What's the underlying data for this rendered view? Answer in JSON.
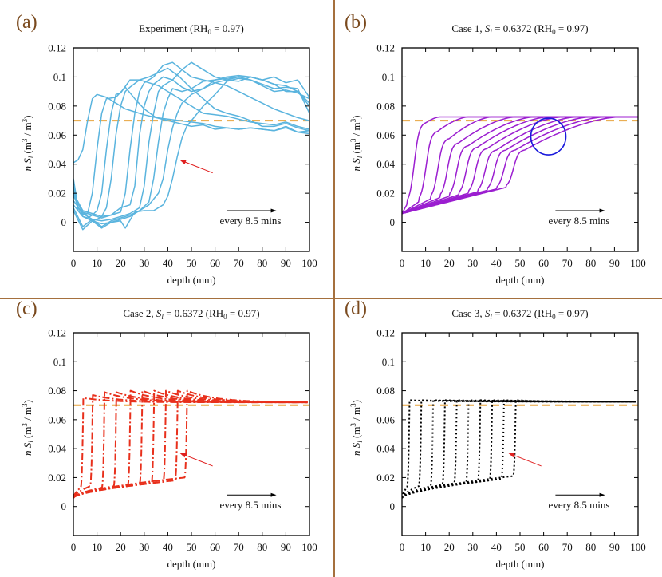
{
  "colors": {
    "divider": "#a5703e",
    "panel_label": "#7a4a1e",
    "reference_line": "#e8a33c",
    "annotation_arrow": "#e02020",
    "highlight_circle": "#1a1adc"
  },
  "chart_data": [
    {
      "panel": "(a)",
      "type": "line",
      "title": "Experiment (RH₀ = 0.97)",
      "title_parts": {
        "pre": "Experiment (RH",
        "sub": "0",
        "post": " = 0.97)"
      },
      "xlabel": "depth (mm)",
      "ylabel": "n S_l (m^3 / m^3)",
      "xlim": [
        0,
        100
      ],
      "ylim": [
        -0.02,
        0.12
      ],
      "xticks": [
        0,
        10,
        20,
        30,
        40,
        50,
        60,
        70,
        80,
        90,
        100
      ],
      "yticks": [
        "0",
        "0.02",
        "0.04",
        "0.06",
        "0.08",
        "0.1",
        "0.12"
      ],
      "ytick_values": [
        0,
        0.02,
        0.04,
        0.06,
        0.08,
        0.1,
        0.12
      ],
      "line_color": "#5ab4de",
      "line_style": "solid",
      "reference_line": {
        "y": 0.07,
        "style": "dashed"
      },
      "annotation": {
        "text": "every 8.5 mins",
        "arrow": "right"
      },
      "series": [
        {
          "name": "t1",
          "x": [
            0,
            2,
            4,
            6,
            8,
            10,
            14,
            18,
            22,
            26,
            30,
            35,
            40,
            45,
            50,
            55,
            60,
            65,
            70,
            75,
            80,
            85,
            90,
            95,
            100
          ],
          "y": [
            0.041,
            0.043,
            0.05,
            0.07,
            0.085,
            0.088,
            0.086,
            0.082,
            0.078,
            0.076,
            0.074,
            0.072,
            0.071,
            0.07,
            0.069,
            0.068,
            0.066,
            0.065,
            0.064,
            0.065,
            0.064,
            0.063,
            0.065,
            0.062,
            0.061
          ]
        },
        {
          "name": "t2",
          "x": [
            0,
            2,
            4,
            6,
            8,
            10,
            12,
            14,
            18,
            22,
            26,
            30,
            35,
            40,
            45,
            50,
            55,
            60,
            65,
            70,
            75,
            80,
            85,
            90,
            95,
            100
          ],
          "y": [
            0.03,
            0.01,
            0.005,
            0.006,
            0.02,
            0.05,
            0.075,
            0.085,
            0.086,
            0.093,
            0.085,
            0.078,
            0.072,
            0.07,
            0.068,
            0.066,
            0.067,
            0.064,
            0.065,
            0.064,
            0.065,
            0.064,
            0.063,
            0.066,
            0.062,
            0.063
          ]
        },
        {
          "name": "t3",
          "x": [
            0,
            2,
            4,
            6,
            8,
            10,
            12,
            14,
            16,
            18,
            20,
            24,
            28,
            32,
            36,
            40,
            45,
            50,
            55,
            60,
            65,
            70,
            75,
            80,
            85,
            90,
            95,
            100
          ],
          "y": [
            0.025,
            0.008,
            0.004,
            0.003,
            0.005,
            0.008,
            0.02,
            0.05,
            0.075,
            0.088,
            0.089,
            0.098,
            0.098,
            0.096,
            0.094,
            0.09,
            0.085,
            0.08,
            0.075,
            0.074,
            0.073,
            0.071,
            0.069,
            0.068,
            0.067,
            0.069,
            0.066,
            0.064
          ]
        },
        {
          "name": "t4",
          "x": [
            0,
            2,
            4,
            6,
            8,
            10,
            12,
            14,
            16,
            18,
            20,
            22,
            24,
            28,
            32,
            36,
            40,
            45,
            50,
            55,
            60,
            65,
            70,
            75,
            80,
            85,
            90,
            95,
            100
          ],
          "y": [
            0.02,
            0.01,
            0.007,
            0.004,
            0.002,
            0.002,
            0.004,
            0.01,
            0.03,
            0.06,
            0.08,
            0.09,
            0.093,
            0.098,
            0.1,
            0.103,
            0.106,
            0.1,
            0.092,
            0.085,
            0.078,
            0.075,
            0.073,
            0.07,
            0.066,
            0.066,
            0.068,
            0.065,
            0.063
          ]
        },
        {
          "name": "t5",
          "x": [
            0,
            4,
            8,
            12,
            16,
            20,
            22,
            24,
            26,
            28,
            30,
            34,
            38,
            42,
            46,
            50,
            55,
            60,
            65,
            70,
            75,
            80,
            85,
            90,
            95,
            100
          ],
          "y": [
            0.02,
            0.008,
            0.006,
            0.004,
            0.005,
            0.007,
            0.02,
            0.05,
            0.075,
            0.09,
            0.096,
            0.1,
            0.108,
            0.11,
            0.105,
            0.1,
            0.098,
            0.096,
            0.094,
            0.09,
            0.086,
            0.082,
            0.078,
            0.075,
            0.072,
            0.07
          ]
        },
        {
          "name": "t6",
          "x": [
            0,
            4,
            8,
            12,
            16,
            20,
            24,
            26,
            28,
            30,
            32,
            34,
            38,
            42,
            46,
            50,
            55,
            60,
            65,
            70,
            75,
            80,
            85,
            90,
            95,
            100
          ],
          "y": [
            0.018,
            0.007,
            0.005,
            0.003,
            0.005,
            0.01,
            0.012,
            0.025,
            0.06,
            0.08,
            0.09,
            0.095,
            0.1,
            0.098,
            0.105,
            0.11,
            0.105,
            0.1,
            0.098,
            0.1,
            0.098,
            0.094,
            0.09,
            0.091,
            0.089,
            0.085
          ]
        },
        {
          "name": "t7",
          "x": [
            0,
            4,
            8,
            12,
            16,
            20,
            24,
            28,
            30,
            32,
            34,
            36,
            38,
            42,
            46,
            50,
            55,
            60,
            65,
            70,
            75,
            80,
            85,
            90,
            95,
            100
          ],
          "y": [
            0.015,
            0.006,
            0.002,
            0.001,
            0.002,
            0.004,
            0.006,
            0.01,
            0.025,
            0.055,
            0.075,
            0.09,
            0.094,
            0.098,
            0.093,
            0.09,
            0.092,
            0.098,
            0.099,
            0.1,
            0.1,
            0.098,
            0.1,
            0.096,
            0.098,
            0.086
          ]
        },
        {
          "name": "t8",
          "x": [
            0,
            4,
            8,
            12,
            16,
            20,
            24,
            28,
            32,
            34,
            36,
            38,
            40,
            42,
            46,
            50,
            55,
            60,
            65,
            70,
            75,
            80,
            85,
            90,
            95,
            100
          ],
          "y": [
            0.012,
            0.004,
            0.001,
            -0.001,
            0,
            0.002,
            0.004,
            0.008,
            0.014,
            0.03,
            0.055,
            0.075,
            0.085,
            0.092,
            0.09,
            0.092,
            0.097,
            0.098,
            0.1,
            0.101,
            0.1,
            0.098,
            0.095,
            0.094,
            0.09,
            0.08
          ]
        },
        {
          "name": "t9",
          "x": [
            0,
            4,
            8,
            12,
            16,
            20,
            24,
            28,
            32,
            36,
            38,
            40,
            42,
            44,
            46,
            50,
            55,
            60,
            65,
            70,
            75,
            80,
            85,
            90,
            95,
            100
          ],
          "y": [
            0.01,
            -0.003,
            0.002,
            -0.003,
            0.001,
            0.003,
            0.005,
            0.008,
            0.012,
            0.02,
            0.03,
            0.05,
            0.065,
            0.075,
            0.082,
            0.088,
            0.092,
            0.096,
            0.098,
            0.097,
            0.1,
            0.098,
            0.095,
            0.09,
            0.09,
            0.082
          ]
        },
        {
          "name": "t10",
          "x": [
            0,
            4,
            8,
            12,
            16,
            20,
            22,
            26,
            30,
            34,
            38,
            40,
            42,
            44,
            46,
            48,
            50,
            55,
            60,
            65,
            70,
            75,
            80,
            85,
            90,
            95,
            100
          ],
          "y": [
            0.008,
            -0.005,
            0.001,
            -0.004,
            0,
            0.001,
            -0.004,
            0.007,
            0.008,
            0.008,
            0.012,
            0.018,
            0.03,
            0.045,
            0.058,
            0.066,
            0.07,
            0.08,
            0.088,
            0.097,
            0.099,
            0.098,
            0.095,
            0.092,
            0.093,
            0.092,
            0.075
          ]
        }
      ]
    },
    {
      "panel": "(b)",
      "type": "line",
      "title": "Case 1, S_l = 0.6372 (RH₀ = 0.97)",
      "title_parts": {
        "pre": "Case 1, ",
        "ital": "S",
        "isub": "l",
        "mid": " = 0.6372 (RH",
        "sub": "0",
        "post": " = 0.97)"
      },
      "xlabel": "depth (mm)",
      "ylabel": "n S_l (m^3 / m^3)",
      "xlim": [
        0,
        100
      ],
      "ylim": [
        -0.02,
        0.12
      ],
      "xticks": [
        0,
        10,
        20,
        30,
        40,
        50,
        60,
        70,
        80,
        90,
        100
      ],
      "yticks": [
        "0",
        "0.02",
        "0.04",
        "0.06",
        "0.08",
        "0.1",
        "0.12"
      ],
      "ytick_values": [
        0,
        0.02,
        0.04,
        0.06,
        0.08,
        0.1,
        0.12
      ],
      "line_color": "#9b1ed0",
      "line_style": "solid",
      "reference_line": {
        "y": 0.07,
        "style": "dashed"
      },
      "highlight": {
        "shape": "circle",
        "x": 62,
        "y": 0.059
      },
      "annotation": {
        "text": "every 8.5 mins",
        "arrow": "right"
      },
      "model": {
        "start_y": 0.006,
        "plateau_y": 0.0725,
        "front_x": [
          2,
          7,
          12,
          16,
          20,
          24,
          28,
          32,
          36,
          40,
          44
        ],
        "front_low_y": [
          0.012,
          0.014,
          0.016,
          0.017,
          0.018,
          0.019,
          0.02,
          0.021,
          0.022,
          0.023,
          0.024
        ],
        "front_high_y": [
          0.069,
          0.063,
          0.058,
          0.055,
          0.053,
          0.052,
          0.051,
          0.05,
          0.05,
          0.05,
          0.05
        ],
        "join_x": [
          16,
          28,
          38,
          48,
          56,
          62,
          68,
          74,
          80,
          86,
          92
        ]
      }
    },
    {
      "panel": "(c)",
      "type": "line",
      "title": "Case 2, S_l = 0.6372 (RH₀ = 0.97)",
      "title_parts": {
        "pre": "Case 2, ",
        "ital": "S",
        "isub": "l",
        "mid": " = 0.6372 (RH",
        "sub": "0",
        "post": " = 0.97)"
      },
      "xlabel": "depth (mm)",
      "ylabel": "n S_l (m^3 / m^3)",
      "xlim": [
        0,
        100
      ],
      "ylim": [
        -0.02,
        0.12
      ],
      "xticks": [
        0,
        10,
        20,
        30,
        40,
        50,
        60,
        70,
        80,
        90,
        100
      ],
      "yticks": [
        "0",
        "0.02",
        "0.04",
        "0.06",
        "0.08",
        "0.1",
        "0.12"
      ],
      "ytick_values": [
        0,
        0.02,
        0.04,
        0.06,
        0.08,
        0.1,
        0.12
      ],
      "line_color": "#e8301c",
      "line_style": "dash-dot",
      "reference_line": {
        "y": 0.07,
        "style": "dashed"
      },
      "annotation": {
        "text": "every 8.5 mins",
        "arrow": "right"
      },
      "model": {
        "start_y": 0.006,
        "plateau_y": 0.072,
        "front_x": [
          3,
          7,
          12,
          17,
          23,
          28,
          33,
          38,
          43,
          47
        ],
        "front_low_y": [
          0.013,
          0.014,
          0.013,
          0.014,
          0.015,
          0.016,
          0.016,
          0.017,
          0.018,
          0.02
        ],
        "peak_y": [
          0.075,
          0.077,
          0.079,
          0.079,
          0.08,
          0.08,
          0.08,
          0.08,
          0.08,
          0.08
        ]
      }
    },
    {
      "panel": "(d)",
      "type": "line",
      "title": "Case 3, S_l = 0.6372 (RH₀ = 0.97)",
      "title_parts": {
        "pre": "Case 3, ",
        "ital": "S",
        "isub": "l",
        "mid": " = 0.6372 (RH",
        "sub": "0",
        "post": " = 0.97)"
      },
      "xlabel": "depth (mm)",
      "ylabel": "n S_l (m^3 / m^3)",
      "xlim": [
        0,
        100
      ],
      "ylim": [
        -0.02,
        0.12
      ],
      "xticks": [
        0,
        10,
        20,
        30,
        40,
        50,
        60,
        70,
        80,
        90,
        100
      ],
      "yticks": [
        "0",
        "0.02",
        "0.04",
        "0.06",
        "0.08",
        "0.1",
        "0.12"
      ],
      "ytick_values": [
        0,
        0.02,
        0.04,
        0.06,
        0.08,
        0.1,
        0.12
      ],
      "line_color": "#000000",
      "line_style": "dotted",
      "reference_line": {
        "y": 0.07,
        "style": "dashed"
      },
      "annotation": {
        "text": "every 8.5 mins",
        "arrow": "right"
      },
      "model": {
        "start_y": 0.006,
        "plateau_y": 0.0725,
        "front_x": [
          2,
          7,
          12,
          17,
          22,
          27,
          32,
          37,
          42,
          47
        ],
        "front_low_y": [
          0.013,
          0.014,
          0.014,
          0.015,
          0.016,
          0.016,
          0.017,
          0.018,
          0.019,
          0.021
        ],
        "peak_y": [
          0.0735,
          0.0735,
          0.0735,
          0.0735,
          0.0735,
          0.0735,
          0.0735,
          0.0735,
          0.0735,
          0.0735
        ]
      }
    }
  ]
}
